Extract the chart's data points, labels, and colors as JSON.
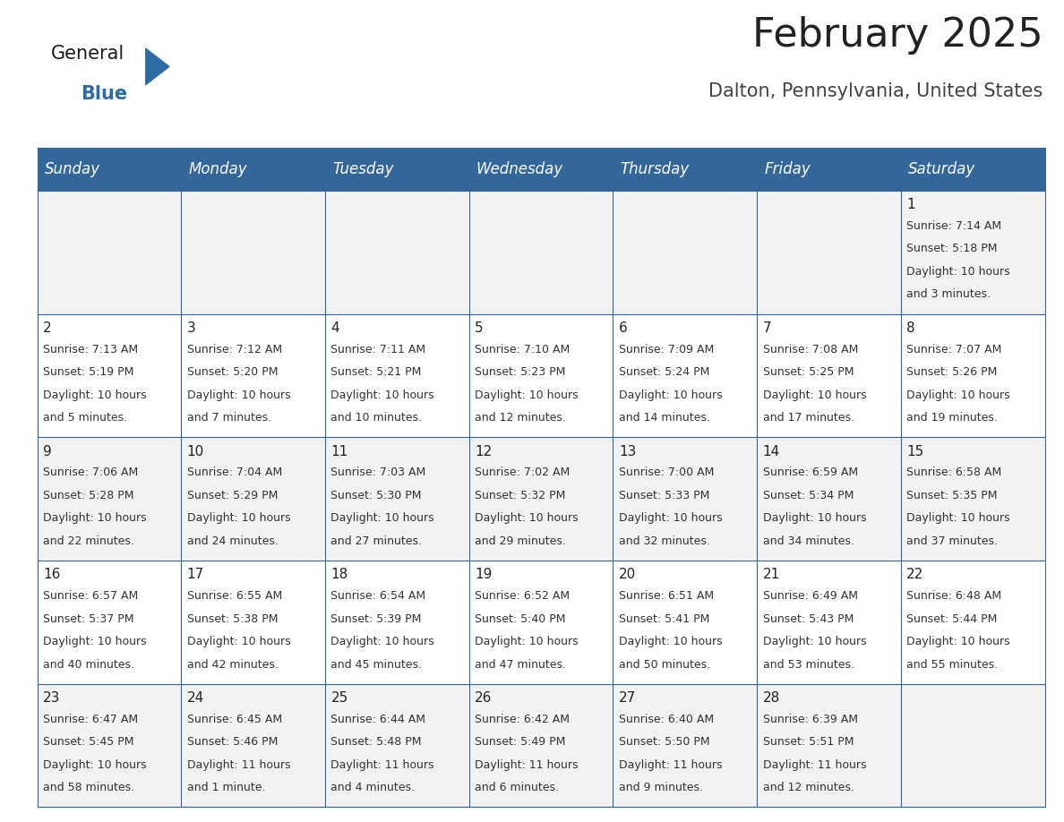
{
  "title": "February 2025",
  "subtitle": "Dalton, Pennsylvania, United States",
  "header_bg": "#336699",
  "header_text_color": "#FFFFFF",
  "days_of_week": [
    "Sunday",
    "Monday",
    "Tuesday",
    "Wednesday",
    "Thursday",
    "Friday",
    "Saturday"
  ],
  "row_bg_odd": "#F2F2F2",
  "row_bg_even": "#FFFFFF",
  "cell_text_color": "#333333",
  "day_number_color": "#222222",
  "grid_line_color": "#336699",
  "calendar_data": [
    [
      {
        "day": null
      },
      {
        "day": null
      },
      {
        "day": null
      },
      {
        "day": null
      },
      {
        "day": null
      },
      {
        "day": null
      },
      {
        "day": 1,
        "sunrise": "7:14 AM",
        "sunset": "5:18 PM",
        "daylight_h": "10 hours",
        "daylight_m": "and 3 minutes."
      }
    ],
    [
      {
        "day": 2,
        "sunrise": "7:13 AM",
        "sunset": "5:19 PM",
        "daylight_h": "10 hours",
        "daylight_m": "and 5 minutes."
      },
      {
        "day": 3,
        "sunrise": "7:12 AM",
        "sunset": "5:20 PM",
        "daylight_h": "10 hours",
        "daylight_m": "and 7 minutes."
      },
      {
        "day": 4,
        "sunrise": "7:11 AM",
        "sunset": "5:21 PM",
        "daylight_h": "10 hours",
        "daylight_m": "and 10 minutes."
      },
      {
        "day": 5,
        "sunrise": "7:10 AM",
        "sunset": "5:23 PM",
        "daylight_h": "10 hours",
        "daylight_m": "and 12 minutes."
      },
      {
        "day": 6,
        "sunrise": "7:09 AM",
        "sunset": "5:24 PM",
        "daylight_h": "10 hours",
        "daylight_m": "and 14 minutes."
      },
      {
        "day": 7,
        "sunrise": "7:08 AM",
        "sunset": "5:25 PM",
        "daylight_h": "10 hours",
        "daylight_m": "and 17 minutes."
      },
      {
        "day": 8,
        "sunrise": "7:07 AM",
        "sunset": "5:26 PM",
        "daylight_h": "10 hours",
        "daylight_m": "and 19 minutes."
      }
    ],
    [
      {
        "day": 9,
        "sunrise": "7:06 AM",
        "sunset": "5:28 PM",
        "daylight_h": "10 hours",
        "daylight_m": "and 22 minutes."
      },
      {
        "day": 10,
        "sunrise": "7:04 AM",
        "sunset": "5:29 PM",
        "daylight_h": "10 hours",
        "daylight_m": "and 24 minutes."
      },
      {
        "day": 11,
        "sunrise": "7:03 AM",
        "sunset": "5:30 PM",
        "daylight_h": "10 hours",
        "daylight_m": "and 27 minutes."
      },
      {
        "day": 12,
        "sunrise": "7:02 AM",
        "sunset": "5:32 PM",
        "daylight_h": "10 hours",
        "daylight_m": "and 29 minutes."
      },
      {
        "day": 13,
        "sunrise": "7:00 AM",
        "sunset": "5:33 PM",
        "daylight_h": "10 hours",
        "daylight_m": "and 32 minutes."
      },
      {
        "day": 14,
        "sunrise": "6:59 AM",
        "sunset": "5:34 PM",
        "daylight_h": "10 hours",
        "daylight_m": "and 34 minutes."
      },
      {
        "day": 15,
        "sunrise": "6:58 AM",
        "sunset": "5:35 PM",
        "daylight_h": "10 hours",
        "daylight_m": "and 37 minutes."
      }
    ],
    [
      {
        "day": 16,
        "sunrise": "6:57 AM",
        "sunset": "5:37 PM",
        "daylight_h": "10 hours",
        "daylight_m": "and 40 minutes."
      },
      {
        "day": 17,
        "sunrise": "6:55 AM",
        "sunset": "5:38 PM",
        "daylight_h": "10 hours",
        "daylight_m": "and 42 minutes."
      },
      {
        "day": 18,
        "sunrise": "6:54 AM",
        "sunset": "5:39 PM",
        "daylight_h": "10 hours",
        "daylight_m": "and 45 minutes."
      },
      {
        "day": 19,
        "sunrise": "6:52 AM",
        "sunset": "5:40 PM",
        "daylight_h": "10 hours",
        "daylight_m": "and 47 minutes."
      },
      {
        "day": 20,
        "sunrise": "6:51 AM",
        "sunset": "5:41 PM",
        "daylight_h": "10 hours",
        "daylight_m": "and 50 minutes."
      },
      {
        "day": 21,
        "sunrise": "6:49 AM",
        "sunset": "5:43 PM",
        "daylight_h": "10 hours",
        "daylight_m": "and 53 minutes."
      },
      {
        "day": 22,
        "sunrise": "6:48 AM",
        "sunset": "5:44 PM",
        "daylight_h": "10 hours",
        "daylight_m": "and 55 minutes."
      }
    ],
    [
      {
        "day": 23,
        "sunrise": "6:47 AM",
        "sunset": "5:45 PM",
        "daylight_h": "10 hours",
        "daylight_m": "and 58 minutes."
      },
      {
        "day": 24,
        "sunrise": "6:45 AM",
        "sunset": "5:46 PM",
        "daylight_h": "11 hours",
        "daylight_m": "and 1 minute."
      },
      {
        "day": 25,
        "sunrise": "6:44 AM",
        "sunset": "5:48 PM",
        "daylight_h": "11 hours",
        "daylight_m": "and 4 minutes."
      },
      {
        "day": 26,
        "sunrise": "6:42 AM",
        "sunset": "5:49 PM",
        "daylight_h": "11 hours",
        "daylight_m": "and 6 minutes."
      },
      {
        "day": 27,
        "sunrise": "6:40 AM",
        "sunset": "5:50 PM",
        "daylight_h": "11 hours",
        "daylight_m": "and 9 minutes."
      },
      {
        "day": 28,
        "sunrise": "6:39 AM",
        "sunset": "5:51 PM",
        "daylight_h": "11 hours",
        "daylight_m": "and 12 minutes."
      },
      {
        "day": null
      }
    ]
  ],
  "logo_general_color": "#1a1a1a",
  "logo_blue_color": "#2E6DA4",
  "logo_triangle_color": "#2E6DA4",
  "title_fontsize": 32,
  "subtitle_fontsize": 15,
  "header_fontsize": 12,
  "day_num_fontsize": 11,
  "cell_info_fontsize": 9
}
